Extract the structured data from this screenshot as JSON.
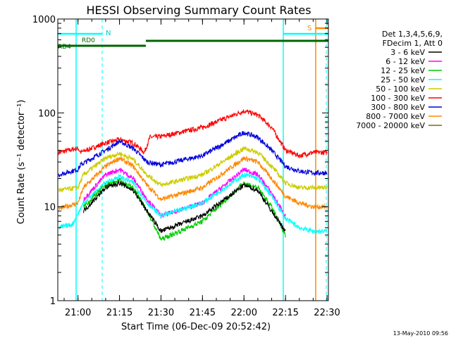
{
  "chart_data": {
    "type": "line",
    "title": "HESSI Observing Summary Count Rates",
    "xlabel": "Start Time (06-Dec-09 20:52:42)",
    "ylabel": "Count Rate (s⁻¹ detector⁻¹)",
    "yscale": "log",
    "ylim": [
      1,
      1000
    ],
    "xlim": [
      "20:52:42",
      "22:30:30"
    ],
    "x_ticks": [
      "21:00",
      "21:15",
      "21:30",
      "21:45",
      "22:00",
      "22:15",
      "22:30"
    ],
    "y_ticks": [
      "1",
      "10",
      "100",
      "1000"
    ],
    "timestamp": "13-May-2010 09:56",
    "legend": {
      "placement": "right",
      "header": [
        "Det 1,3,4,5,6,9,",
        "FDecim 1, Att 0"
      ],
      "entries": [
        {
          "label": "3 - 6 keV",
          "color": "#000000"
        },
        {
          "label": "6 - 12 keV",
          "color": "#ff00ff"
        },
        {
          "label": "12 - 25 keV",
          "color": "#00cc00"
        },
        {
          "label": "25 - 50 keV",
          "color": "#00ffff"
        },
        {
          "label": "50 - 100 keV",
          "color": "#cccc00"
        },
        {
          "label": "100 - 300 keV",
          "color": "#ff0000"
        },
        {
          "label": "300 - 800 keV",
          "color": "#0000dd"
        },
        {
          "label": "800 - 7000 keV",
          "color": "#ff8800"
        },
        {
          "label": "7000 - 20000 keV",
          "color": "#886600"
        }
      ]
    },
    "flags": {
      "N": "N",
      "S": "S",
      "RD0": "RD0",
      "RD4": "RD4"
    },
    "series": [
      {
        "name": "100 - 300 keV",
        "color": "#ff0000",
        "x": [
          "20:53",
          "21:00",
          "21:01",
          "21:10",
          "21:15",
          "21:20",
          "21:24",
          "21:26",
          "21:30",
          "21:45",
          "22:00",
          "22:05",
          "22:10",
          "22:15",
          "22:20",
          "22:25",
          "22:30"
        ],
        "y": [
          38,
          42,
          38,
          48,
          52,
          48,
          38,
          55,
          56,
          70,
          105,
          95,
          70,
          40,
          35,
          38,
          38
        ]
      },
      {
        "name": "300 - 800 keV",
        "color": "#0000dd",
        "x": [
          "20:53",
          "21:00",
          "21:01",
          "21:10",
          "21:15",
          "21:20",
          "21:25",
          "21:30",
          "21:45",
          "22:00",
          "22:05",
          "22:10",
          "22:15",
          "22:20",
          "22:25",
          "22:30"
        ],
        "y": [
          22,
          25,
          28,
          40,
          50,
          42,
          30,
          28,
          35,
          62,
          55,
          40,
          27,
          24,
          23,
          23
        ]
      },
      {
        "name": "800 - 7000 keV",
        "color": "#ff8800",
        "x": [
          "20:53",
          "21:00",
          "21:02",
          "21:10",
          "21:15",
          "21:20",
          "21:25",
          "21:30",
          "21:45",
          "22:00",
          "22:05",
          "22:10",
          "22:15",
          "22:20",
          "22:25",
          "22:30"
        ],
        "y": [
          9.5,
          11,
          16,
          27,
          33,
          27,
          17,
          12,
          16,
          33,
          30,
          20,
          13,
          11,
          10,
          10
        ]
      },
      {
        "name": "50 - 100 keV",
        "color": "#cccc00",
        "x": [
          "20:53",
          "21:00",
          "21:02",
          "21:10",
          "21:15",
          "21:20",
          "21:25",
          "21:30",
          "21:45",
          "22:00",
          "22:05",
          "22:10",
          "22:15",
          "22:20",
          "22:25",
          "22:30"
        ],
        "y": [
          15,
          16,
          22,
          33,
          37,
          32,
          22,
          17,
          22,
          42,
          38,
          27,
          18,
          16,
          16,
          16
        ]
      },
      {
        "name": "6 - 12 keV",
        "color": "#ff00ff",
        "x": [
          "21:02",
          "21:10",
          "21:15",
          "21:20",
          "21:25",
          "21:30",
          "21:45",
          "22:00",
          "22:05",
          "22:10",
          "22:15"
        ],
        "y": [
          12,
          22,
          25,
          20,
          12,
          8,
          11,
          25,
          22,
          14,
          8
        ]
      },
      {
        "name": "25 - 50 keV",
        "color": "#00ffff",
        "x": [
          "20:53",
          "20:58",
          "21:02",
          "21:10",
          "21:15",
          "21:20",
          "21:25",
          "21:30",
          "21:45",
          "22:00",
          "22:05",
          "22:10",
          "22:15",
          "22:20",
          "22:25",
          "22:30"
        ],
        "y": [
          6,
          6.5,
          11,
          18,
          21,
          18,
          11,
          8,
          11,
          22,
          20,
          13,
          7.5,
          6,
          5.5,
          5.5
        ]
      },
      {
        "name": "12 - 25 keV",
        "color": "#00cc00",
        "x": [
          "21:02",
          "21:10",
          "21:15",
          "21:20",
          "21:25",
          "21:30",
          "21:45",
          "22:00",
          "22:05",
          "22:10",
          "22:15"
        ],
        "y": [
          10,
          17,
          19,
          16,
          9,
          4.5,
          7,
          18,
          16,
          10,
          5
        ]
      },
      {
        "name": "3 - 6 keV",
        "color": "#000000",
        "x": [
          "21:02",
          "21:10",
          "21:15",
          "21:20",
          "21:25",
          "21:30",
          "21:45",
          "22:00",
          "22:05",
          "22:10",
          "22:15"
        ],
        "y": [
          9,
          16,
          18,
          15,
          9,
          5.5,
          8,
          17,
          15,
          9,
          5.5
        ]
      }
    ]
  }
}
